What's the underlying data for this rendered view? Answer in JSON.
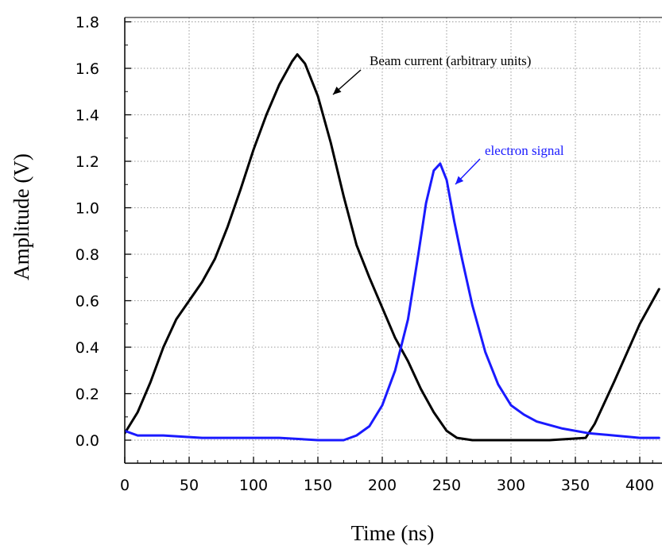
{
  "chart_data": {
    "type": "line",
    "xlabel": "Time (ns)",
    "ylabel": "Amplitude (V)",
    "xlim": [
      0,
      415
    ],
    "ylim": [
      -0.1,
      1.8
    ],
    "x_ticks": [
      "0",
      "50",
      "100",
      "150",
      "200",
      "250",
      "300",
      "350",
      "400"
    ],
    "y_ticks": [
      "0.0",
      "0.2",
      "0.4",
      "0.6",
      "0.8",
      "1.0",
      "1.2",
      "1.4",
      "1.6",
      "1.8"
    ],
    "grid": true,
    "series": [
      {
        "name": "Beam current (arbitrary units)",
        "color": "#000000",
        "x": [
          0,
          10,
          20,
          30,
          40,
          50,
          60,
          70,
          80,
          90,
          100,
          110,
          120,
          130,
          134,
          140,
          150,
          160,
          170,
          180,
          190,
          200,
          210,
          220,
          230,
          240,
          250,
          258,
          270,
          300,
          330,
          358,
          365,
          380,
          400,
          415
        ],
        "y": [
          0.03,
          0.12,
          0.25,
          0.4,
          0.52,
          0.6,
          0.68,
          0.78,
          0.92,
          1.08,
          1.25,
          1.4,
          1.53,
          1.63,
          1.66,
          1.62,
          1.48,
          1.28,
          1.05,
          0.84,
          0.7,
          0.57,
          0.44,
          0.34,
          0.22,
          0.12,
          0.04,
          0.01,
          0.0,
          0.0,
          0.0,
          0.01,
          0.07,
          0.25,
          0.5,
          0.65
        ]
      },
      {
        "name": "electron signal",
        "color": "#1a1aff",
        "x": [
          0,
          10,
          30,
          60,
          90,
          120,
          150,
          170,
          180,
          190,
          200,
          210,
          220,
          228,
          234,
          240,
          245,
          250,
          256,
          262,
          270,
          280,
          290,
          300,
          310,
          320,
          340,
          360,
          380,
          400,
          415
        ],
        "y": [
          0.04,
          0.02,
          0.02,
          0.01,
          0.01,
          0.01,
          0.0,
          0.0,
          0.02,
          0.06,
          0.15,
          0.3,
          0.52,
          0.8,
          1.02,
          1.16,
          1.19,
          1.12,
          0.94,
          0.78,
          0.58,
          0.38,
          0.24,
          0.15,
          0.11,
          0.08,
          0.05,
          0.03,
          0.02,
          0.01,
          0.01
        ]
      }
    ],
    "annotations": [
      {
        "text": "Beam current (arbitrary units)",
        "series": 0
      },
      {
        "text": "electron signal",
        "series": 1
      }
    ]
  }
}
